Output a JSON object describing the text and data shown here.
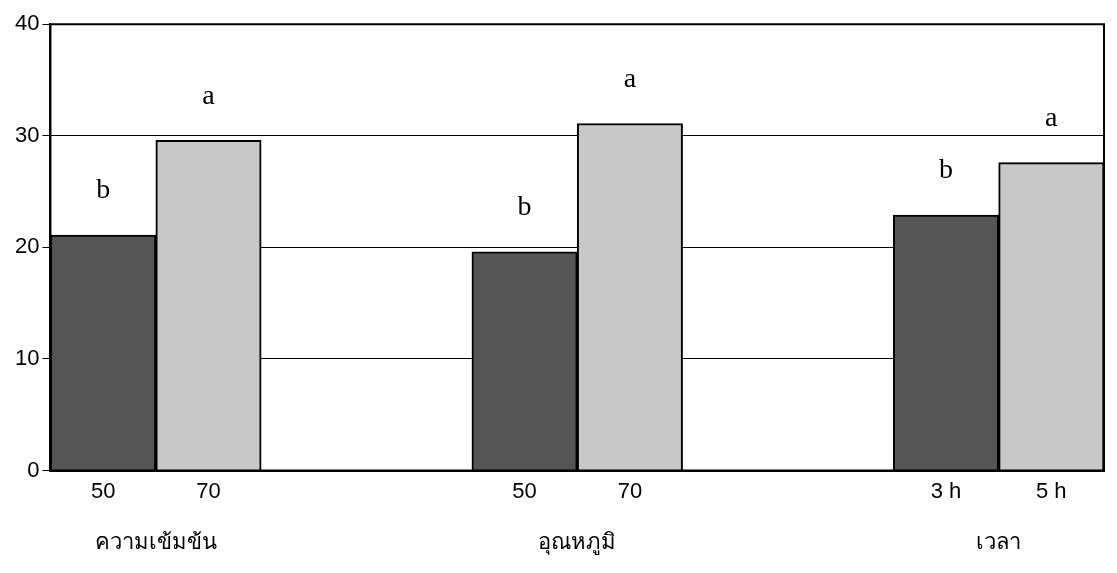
{
  "chart_data": {
    "type": "bar",
    "categories": [
      "50",
      "70",
      null,
      null,
      "50",
      "70",
      null,
      null,
      "3 h",
      "5 h"
    ],
    "values": [
      21.1,
      29.6,
      null,
      null,
      19.6,
      31.1,
      null,
      null,
      22.9,
      27.6
    ],
    "colors": [
      "#555555",
      "#c8c8c8",
      null,
      null,
      "#555555",
      "#c8c8c8",
      null,
      null,
      "#555555",
      "#c8c8c8"
    ],
    "value_labels": [
      "b",
      "a",
      null,
      null,
      "b",
      "a",
      null,
      null,
      "b",
      "a"
    ],
    "annotations": [
      "ความเข้มข้น",
      "อุณหภูมิ",
      "เวลา"
    ],
    "ylim": [
      0,
      40
    ],
    "yticks": [
      0,
      10,
      20,
      30,
      40
    ],
    "grid": "y"
  }
}
